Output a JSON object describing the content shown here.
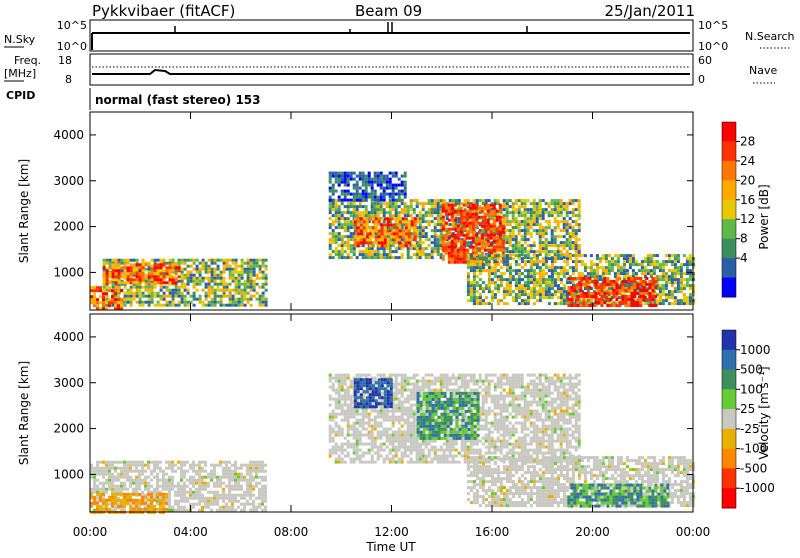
{
  "header": {
    "station": "Pykkvibaer (fitACF)",
    "beam": "Beam 09",
    "date": "25/Jan/2011"
  },
  "top_panels": {
    "nsky_label": "N.Sky",
    "nsky_ticks": [
      "10^5",
      "10^0"
    ],
    "nsearch_label": "N.Search",
    "nsearch_ticks": [
      "10^5",
      "10^0"
    ],
    "freq_label_1": "Freq.",
    "freq_label_2": "[MHz]",
    "freq_ticks": [
      "18",
      "8"
    ],
    "nave_label": "Nave",
    "nave_ticks": [
      "60",
      "0"
    ],
    "cpid_label": "CPID",
    "cpid_value": "normal (fast stereo) 153"
  },
  "chart_data": [
    {
      "type": "heatmap",
      "quantity": "Power",
      "ylabel": "Slant Range [km]",
      "ylim": [
        180,
        4500
      ],
      "yticks": [
        "1000",
        "2000",
        "3000",
        "4000"
      ],
      "xticks": [
        "00:00",
        "04:00",
        "08:00",
        "12:00",
        "16:00",
        "20:00",
        "00:00"
      ],
      "colorbar": {
        "label": "Power [dB]",
        "ticks": [
          "28",
          "24",
          "20",
          "16",
          "12",
          "8",
          "4"
        ],
        "colors": [
          "#ff0000",
          "#ff3300",
          "#ff7700",
          "#ffaa00",
          "#e8c800",
          "#5fb84a",
          "#3c8f5c",
          "#2a5fa8",
          "#0000ff"
        ]
      },
      "regions": [
        {
          "t": [
            0.5,
            7.0
          ],
          "r": [
            300,
            1300
          ],
          "level": "mid"
        },
        {
          "t": [
            0.5,
            3.5
          ],
          "r": [
            800,
            1200
          ],
          "level": "high"
        },
        {
          "t": [
            0.0,
            1.2
          ],
          "r": [
            200,
            700
          ],
          "level": "high"
        },
        {
          "t": [
            9.5,
            19.5
          ],
          "r": [
            1300,
            2600
          ],
          "level": "mid"
        },
        {
          "t": [
            14.0,
            16.5
          ],
          "r": [
            1200,
            2500
          ],
          "level": "peak"
        },
        {
          "t": [
            10.5,
            13.0
          ],
          "r": [
            1600,
            2200
          ],
          "level": "high"
        },
        {
          "t": [
            15.0,
            24.0
          ],
          "r": [
            300,
            1400
          ],
          "level": "mid"
        },
        {
          "t": [
            19.0,
            22.5
          ],
          "r": [
            300,
            900
          ],
          "level": "peak"
        },
        {
          "t": [
            9.5,
            12.5
          ],
          "r": [
            2600,
            3200
          ],
          "level": "low"
        }
      ]
    },
    {
      "type": "heatmap",
      "quantity": "Velocity",
      "ylabel": "Slant Range [km]",
      "xlabel": "Time UT",
      "ylim": [
        180,
        4500
      ],
      "yticks": [
        "1000",
        "2000",
        "3000",
        "4000"
      ],
      "xticks": [
        "00:00",
        "04:00",
        "08:00",
        "12:00",
        "16:00",
        "20:00",
        "00:00"
      ],
      "colorbar": {
        "label": "Velocity [m s⁻¹]",
        "ticks": [
          "1000",
          "500",
          "100",
          "25",
          "-25",
          "-100",
          "-500",
          "-1000"
        ],
        "colors": [
          "#2233aa",
          "#2e6fae",
          "#3f8f5a",
          "#66cc33",
          "#c8c8c0",
          "#e8b000",
          "#ff8800",
          "#ff3300",
          "#ff0000"
        ]
      },
      "regions": [
        {
          "t": [
            0.0,
            7.0
          ],
          "r": [
            200,
            1300
          ],
          "level": "gray"
        },
        {
          "t": [
            9.5,
            19.5
          ],
          "r": [
            1300,
            3200
          ],
          "level": "gray"
        },
        {
          "t": [
            15.0,
            24.0
          ],
          "r": [
            300,
            1400
          ],
          "level": "gray"
        },
        {
          "t": [
            19.0,
            23.0
          ],
          "r": [
            300,
            800
          ],
          "level": "green"
        },
        {
          "t": [
            10.5,
            12.0
          ],
          "r": [
            2500,
            3100
          ],
          "level": "blue"
        },
        {
          "t": [
            13.0,
            15.5
          ],
          "r": [
            1800,
            2800
          ],
          "level": "green"
        },
        {
          "t": [
            0.0,
            3.0
          ],
          "r": [
            200,
            600
          ],
          "level": "orange"
        }
      ]
    }
  ]
}
